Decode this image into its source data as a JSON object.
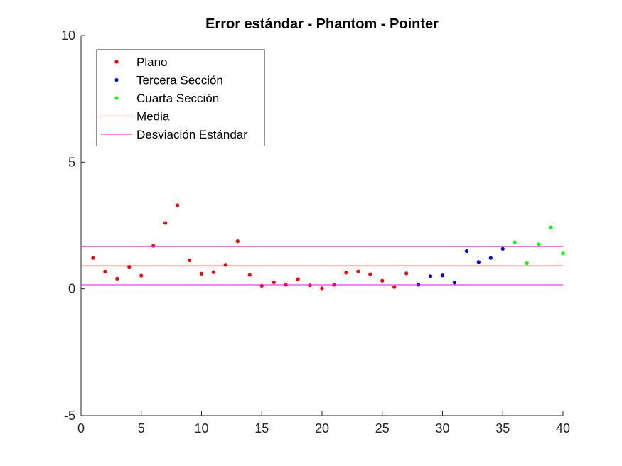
{
  "chart_data": {
    "type": "scatter",
    "title": "Error estándar - Phantom - Pointer",
    "xlabel": "",
    "ylabel": "",
    "xlim": [
      0,
      40
    ],
    "ylim": [
      -5,
      10
    ],
    "x_ticks": [
      0,
      5,
      10,
      15,
      20,
      25,
      30,
      35,
      40
    ],
    "y_ticks": [
      -5,
      0,
      5,
      10
    ],
    "grid": false,
    "legend_position": "top-left",
    "series": [
      {
        "name": "Plano",
        "marker": "dot",
        "color": "#ff0000",
        "x": [
          1,
          2,
          3,
          4,
          5,
          6,
          7,
          8,
          9,
          10,
          11,
          12,
          13,
          14,
          15,
          16,
          17,
          18,
          19,
          20,
          21,
          22,
          23,
          24,
          25,
          26,
          27
        ],
        "y": [
          1.22,
          0.68,
          0.4,
          0.87,
          0.52,
          1.7,
          2.6,
          3.3,
          1.13,
          0.6,
          0.66,
          0.95,
          1.88,
          0.55,
          0.12,
          0.26,
          0.16,
          0.38,
          0.14,
          0.02,
          0.16,
          0.64,
          0.69,
          0.58,
          0.32,
          0.07,
          0.61
        ]
      },
      {
        "name": "Tercera Sección",
        "marker": "dot",
        "color": "#0000ff",
        "x": [
          28,
          29,
          30,
          31,
          32,
          33,
          34,
          35
        ],
        "y": [
          0.16,
          0.5,
          0.53,
          0.25,
          1.49,
          1.06,
          1.22,
          1.58
        ]
      },
      {
        "name": "Cuarta Sección",
        "marker": "dot",
        "color": "#00ff00",
        "x": [
          36,
          37,
          38,
          39,
          40
        ],
        "y": [
          1.84,
          1.01,
          1.76,
          2.42,
          1.4
        ]
      },
      {
        "name": "Media",
        "marker": "hline",
        "color": "#cc0000",
        "y": 0.91
      },
      {
        "name": "Desviación Estándar",
        "marker": "hline",
        "color": "#ff00ff",
        "y": [
          0.16,
          1.67
        ]
      }
    ]
  }
}
